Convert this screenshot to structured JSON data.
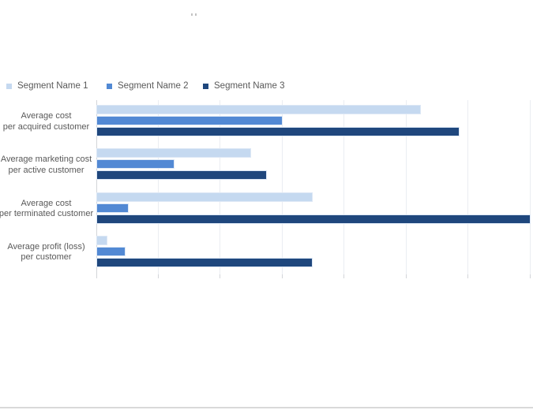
{
  "chart_data": {
    "type": "bar",
    "orientation": "horizontal",
    "title": "",
    "xlabel": "",
    "ylabel": "",
    "xlim": [
      0,
      700
    ],
    "gridline_step": 100,
    "grid": true,
    "value_axis_tick_labels_visible": false,
    "legend_position": "top-left",
    "categories": [
      "Average cost per acquired customer",
      "Average marketing cost per active customer",
      "Average cost per terminated customer",
      "Average profit (loss) per customer"
    ],
    "category_lines": [
      [
        "Average cost",
        "per acquired customer"
      ],
      [
        "Average marketing cost",
        "per active customer"
      ],
      [
        "Average cost",
        "per terminated customer"
      ],
      [
        "Average profit (loss)",
        "per customer"
      ]
    ],
    "series": [
      {
        "name": "Segment Name 1",
        "color": "#c5d9f0",
        "values": [
          523,
          250,
          349,
          18
        ]
      },
      {
        "name": "Segment Name 2",
        "color": "#5289d4",
        "values": [
          300,
          126,
          52,
          47
        ]
      },
      {
        "name": "Segment Name 3",
        "color": "#1f477d",
        "values": [
          585,
          275,
          700,
          349
        ]
      }
    ]
  },
  "style_colors": {
    "gridline": "#eaedf2",
    "category_axis_line": "#d3d5d9",
    "tick": "#d3d5d9",
    "label_text": "#595959",
    "legend_text": "#595959",
    "page_bottom_edge": "#d9d9d9"
  }
}
